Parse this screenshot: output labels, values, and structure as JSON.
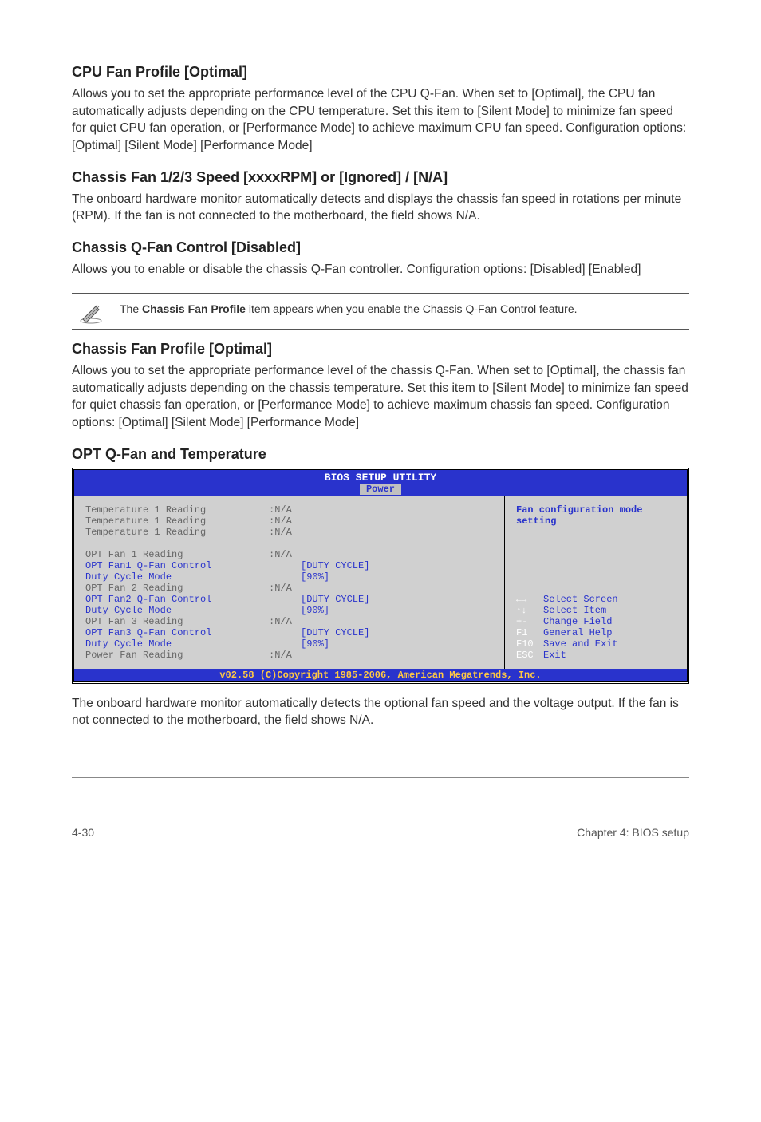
{
  "sections": {
    "cpu_fan_profile": {
      "heading": "CPU Fan Profile [Optimal]",
      "body": "Allows you to set the appropriate performance level of the CPU Q-Fan. When set to [Optimal], the CPU fan automatically adjusts depending on the CPU temperature. Set this item to [Silent Mode] to minimize fan speed for quiet CPU fan operation, or [Performance Mode] to achieve maximum CPU fan speed. Configuration options: [Optimal] [Silent Mode] [Performance Mode]"
    },
    "chassis_fan_speed": {
      "heading": "Chassis Fan 1/2/3 Speed [xxxxRPM] or [Ignored] / [N/A]",
      "body": "The onboard hardware monitor automatically detects and displays the chassis fan speed in rotations per minute (RPM). If the fan is not connected to the motherboard, the field shows N/A."
    },
    "chassis_qfan_control": {
      "heading": "Chassis Q-Fan Control [Disabled]",
      "body": "Allows you to enable or disable the chassis Q-Fan controller. Configuration options: [Disabled] [Enabled]"
    },
    "note": {
      "prefix": "The ",
      "bold": "Chassis Fan Profile",
      "suffix": " item appears when you enable the Chassis Q-Fan Control feature."
    },
    "chassis_fan_profile": {
      "heading": "Chassis Fan Profile [Optimal]",
      "body": "Allows you to set the appropriate performance level of the chassis Q-Fan. When set to [Optimal], the chassis fan automatically adjusts depending on the chassis temperature. Set this item to [Silent Mode] to minimize fan speed for quiet chassis fan operation, or [Performance Mode] to achieve maximum chassis fan speed. Configuration options: [Optimal] [Silent Mode] [Performance Mode]"
    },
    "opt_qfan": {
      "heading": "OPT Q-Fan and Temperature",
      "after": "The onboard hardware monitor automatically detects the optional fan speed and the voltage output. If the fan is not connected to the motherboard, the field shows N/A."
    }
  },
  "bios": {
    "title": "BIOS SETUP UTILITY",
    "tab": "Power",
    "help_title": "Fan configuration mode setting",
    "rows": [
      {
        "label": "Temperature 1 Reading",
        "value": ":N/A",
        "active": false,
        "indent": false
      },
      {
        "label": "Temperature 1 Reading",
        "value": ":N/A",
        "active": false,
        "indent": false
      },
      {
        "label": "Temperature 1 Reading",
        "value": ":N/A",
        "active": false,
        "indent": false
      },
      {
        "label": "",
        "value": "",
        "active": false,
        "indent": false
      },
      {
        "label": "OPT Fan 1 Reading",
        "value": ":N/A",
        "active": false,
        "indent": false
      },
      {
        "label": "OPT Fan1 Q-Fan Control",
        "value": "[DUTY CYCLE]",
        "active": true,
        "indent": true
      },
      {
        "label": "Duty Cycle Mode",
        "value": "[90%]",
        "active": true,
        "indent": true
      },
      {
        "label": "OPT Fan 2 Reading",
        "value": ":N/A",
        "active": false,
        "indent": false
      },
      {
        "label": "OPT Fan2 Q-Fan Control",
        "value": "[DUTY CYCLE]",
        "active": true,
        "indent": true
      },
      {
        "label": "Duty Cycle Mode",
        "value": "[90%]",
        "active": true,
        "indent": true
      },
      {
        "label": "OPT Fan 3 Reading",
        "value": ":N/A",
        "active": false,
        "indent": false
      },
      {
        "label": "OPT Fan3 Q-Fan Control",
        "value": "[DUTY CYCLE]",
        "active": true,
        "indent": true
      },
      {
        "label": "Duty Cycle Mode",
        "value": "[90%]",
        "active": true,
        "indent": true
      },
      {
        "label": "Power Fan Reading",
        "value": ":N/A",
        "active": false,
        "indent": false
      }
    ],
    "keys": [
      {
        "k": "←→",
        "d": "Select Screen"
      },
      {
        "k": "↑↓",
        "d": "Select Item"
      },
      {
        "k": "+-",
        "d": "Change Field"
      },
      {
        "k": "F1",
        "d": "General Help"
      },
      {
        "k": "F10",
        "d": "Save and Exit"
      },
      {
        "k": "ESC",
        "d": "Exit"
      }
    ],
    "footer": "v02.58 (C)Copyright 1985-2006, American Megatrends, Inc."
  },
  "footer": {
    "left": "4-30",
    "right": "Chapter 4: BIOS setup"
  }
}
